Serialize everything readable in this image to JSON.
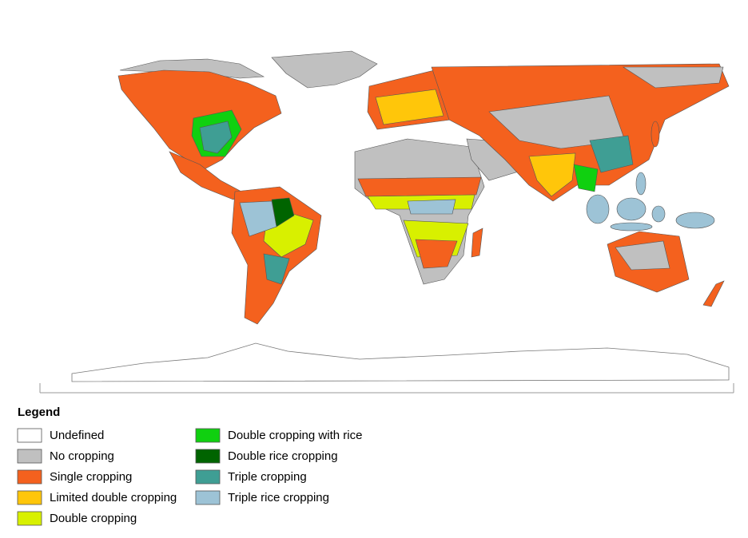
{
  "legend": {
    "title": "Legend",
    "items": [
      {
        "label": "Undefined",
        "color": "#ffffff"
      },
      {
        "label": "No cropping",
        "color": "#c0c0c0"
      },
      {
        "label": "Single cropping",
        "color": "#f4611e"
      },
      {
        "label": "Limited double cropping",
        "color": "#ffc60a"
      },
      {
        "label": "Double cropping",
        "color": "#d8f000"
      },
      {
        "label": "Double cropping with rice",
        "color": "#10d010"
      },
      {
        "label": "Double rice cropping",
        "color": "#006400"
      },
      {
        "label": "Triple cropping",
        "color": "#3f9e94"
      },
      {
        "label": "Triple rice cropping",
        "color": "#9dc3d6"
      }
    ]
  }
}
